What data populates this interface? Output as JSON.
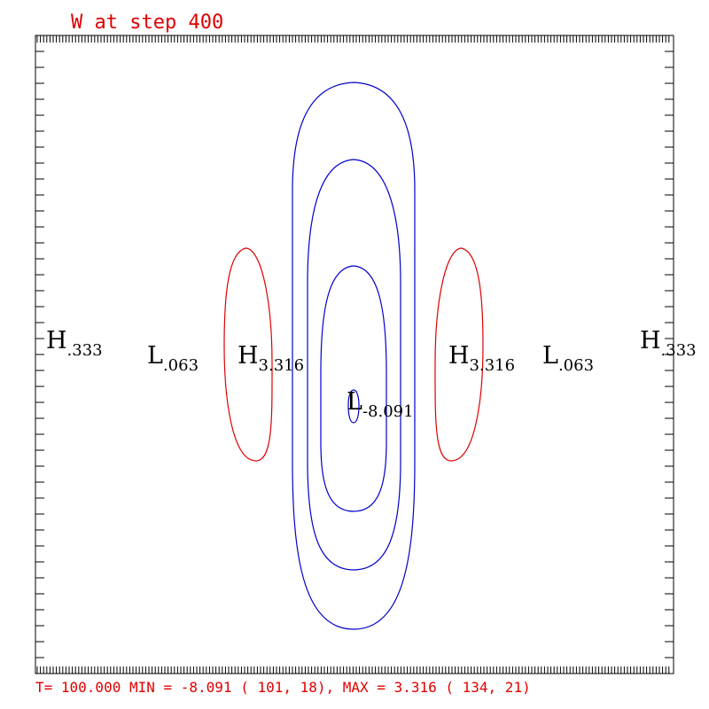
{
  "chart_data": {
    "type": "contour",
    "title": "W at step  400",
    "footer": "T= 100.000     MIN =  -8.091 ( 101, 18), MAX =   3.316 ( 134, 21)",
    "colors": {
      "positive": "#dd0000",
      "negative": "#0000cc",
      "frame": "#000000",
      "text": "#e00000"
    },
    "labels": [
      {
        "kind": "H",
        "value": ".333"
      },
      {
        "kind": "L",
        "value": ".063"
      },
      {
        "kind": "H",
        "value": "3.316"
      },
      {
        "kind": "L",
        "value": "-8.091"
      },
      {
        "kind": "H",
        "value": "3.316"
      },
      {
        "kind": "L",
        "value": ".063"
      },
      {
        "kind": "H",
        "value": ".333"
      }
    ]
  }
}
